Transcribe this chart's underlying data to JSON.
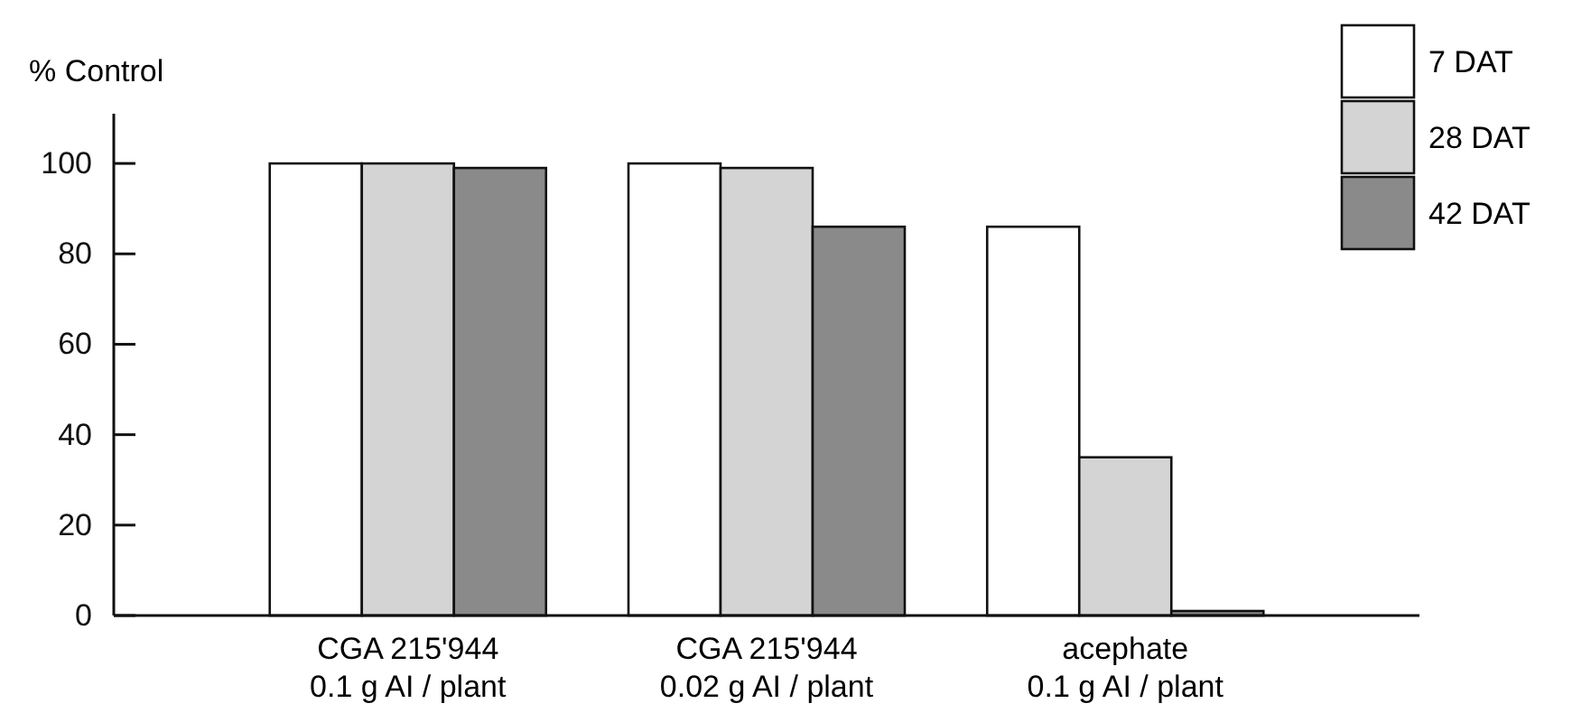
{
  "chart_data": {
    "type": "bar",
    "ylabel": "% Control",
    "categories": [
      "CGA 215'944\n0.1 g AI / plant",
      "CGA 215'944\n0.02 g AI / plant",
      "acephate\n0.1 g AI / plant"
    ],
    "series": [
      {
        "name": "7 DAT",
        "color": "#ffffff",
        "values": [
          100,
          100,
          86
        ]
      },
      {
        "name": "28 DAT",
        "color": "#d4d4d4",
        "values": [
          100,
          99,
          35
        ]
      },
      {
        "name": "42 DAT",
        "color": "#8a8a8a",
        "values": [
          99,
          86,
          1
        ]
      }
    ],
    "ylim": [
      0,
      111
    ],
    "yticks": [
      0,
      20,
      40,
      60,
      80,
      100
    ],
    "grid": false,
    "legend": "top right"
  }
}
